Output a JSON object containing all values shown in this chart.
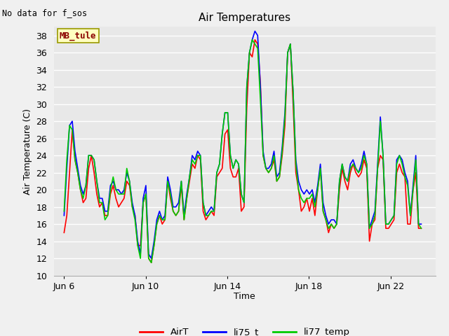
{
  "title": "Air Temperatures",
  "ylabel": "Air Temperature (C)",
  "xlabel": "Time",
  "no_data_label": "No data for f_sos",
  "station_label": "MB_tule",
  "ylim": [
    10,
    39
  ],
  "yticks": [
    10,
    12,
    14,
    16,
    18,
    20,
    22,
    24,
    26,
    28,
    30,
    32,
    34,
    36,
    38
  ],
  "xtick_positions": [
    6,
    10,
    14,
    18,
    22
  ],
  "xtick_labels": [
    "Jun 6",
    "Jun 10",
    "Jun 14",
    "Jun 18",
    "Jun 22"
  ],
  "legend_labels": [
    "AirT",
    "li75_t",
    "li77_temp"
  ],
  "legend_colors": [
    "#ff0000",
    "#0000ff",
    "#00cc00"
  ],
  "bg_color": "#e8e8e8",
  "fig_bg_color": "#f0f0f0",
  "grid_color": "#ffffff",
  "line_width": 1.2,
  "xlim": [
    5.5,
    24.2
  ],
  "AirT": [
    15.0,
    17.0,
    22.0,
    27.0,
    23.5,
    22.0,
    20.0,
    18.5,
    19.0,
    22.5,
    24.0,
    22.0,
    19.5,
    18.0,
    18.5,
    17.0,
    17.0,
    19.5,
    20.5,
    19.0,
    18.0,
    18.5,
    19.0,
    21.0,
    20.5,
    18.0,
    17.0,
    13.5,
    13.5,
    18.5,
    19.5,
    12.0,
    11.5,
    13.5,
    16.0,
    17.0,
    16.0,
    16.5,
    21.0,
    19.0,
    17.5,
    17.0,
    17.5,
    20.5,
    16.5,
    19.0,
    21.0,
    23.0,
    22.5,
    24.0,
    23.5,
    17.5,
    16.5,
    17.0,
    17.5,
    17.0,
    21.5,
    22.0,
    22.5,
    26.5,
    27.0,
    22.5,
    21.5,
    21.5,
    22.5,
    17.5,
    18.0,
    29.5,
    36.0,
    35.5,
    37.5,
    37.0,
    32.5,
    24.0,
    22.5,
    22.0,
    22.5,
    23.5,
    21.0,
    21.5,
    24.0,
    27.5,
    36.0,
    37.0,
    30.0,
    22.0,
    20.0,
    17.5,
    18.0,
    19.0,
    17.5,
    19.0,
    17.0,
    20.0,
    22.5,
    17.5,
    16.5,
    15.0,
    16.0,
    15.5,
    16.0,
    20.0,
    22.5,
    21.0,
    20.0,
    22.0,
    23.0,
    22.0,
    21.5,
    22.0,
    23.5,
    22.5,
    14.0,
    16.0,
    16.5,
    22.5,
    24.0,
    23.5,
    15.5,
    15.5,
    16.0,
    16.5,
    22.0,
    23.0,
    22.0,
    21.5,
    16.0,
    16.0,
    20.0,
    22.0,
    15.5,
    15.5
  ],
  "li75_t": [
    17.0,
    22.5,
    27.5,
    28.0,
    24.5,
    22.5,
    20.5,
    19.5,
    20.5,
    24.0,
    24.0,
    23.5,
    21.0,
    19.0,
    19.0,
    17.5,
    17.5,
    20.5,
    21.0,
    20.0,
    20.0,
    19.5,
    20.0,
    22.0,
    21.0,
    18.5,
    17.0,
    14.0,
    12.5,
    19.0,
    20.5,
    12.5,
    12.0,
    14.0,
    16.5,
    17.5,
    16.5,
    17.0,
    21.5,
    20.0,
    18.0,
    18.0,
    18.5,
    21.0,
    17.0,
    19.5,
    21.5,
    24.0,
    23.5,
    24.5,
    24.0,
    18.5,
    17.0,
    17.5,
    18.0,
    17.5,
    22.0,
    23.0,
    26.5,
    29.0,
    29.0,
    24.0,
    22.5,
    23.5,
    23.0,
    19.5,
    18.5,
    32.0,
    36.0,
    37.5,
    38.5,
    38.0,
    32.0,
    24.5,
    22.5,
    22.5,
    23.0,
    24.5,
    21.5,
    22.0,
    25.0,
    29.0,
    36.0,
    37.0,
    31.5,
    23.5,
    21.0,
    20.0,
    19.5,
    20.0,
    19.5,
    20.0,
    18.5,
    20.5,
    23.0,
    18.5,
    17.0,
    16.0,
    16.5,
    16.5,
    16.0,
    21.0,
    23.0,
    21.5,
    21.0,
    23.0,
    23.5,
    22.5,
    22.0,
    23.0,
    24.5,
    23.0,
    15.5,
    16.5,
    17.5,
    23.0,
    28.5,
    24.0,
    16.0,
    16.0,
    16.5,
    17.0,
    23.5,
    24.0,
    23.5,
    22.0,
    21.0,
    17.0,
    20.5,
    24.0,
    16.0,
    16.0
  ],
  "li77_temp": [
    17.5,
    23.5,
    27.5,
    27.0,
    23.5,
    22.0,
    20.0,
    19.0,
    20.5,
    24.0,
    24.0,
    23.5,
    21.0,
    18.5,
    18.5,
    16.5,
    17.0,
    20.0,
    21.5,
    20.0,
    19.5,
    19.5,
    19.5,
    22.5,
    21.0,
    18.0,
    16.5,
    13.5,
    12.0,
    18.5,
    19.5,
    12.0,
    11.5,
    13.5,
    16.0,
    17.0,
    16.5,
    16.5,
    21.0,
    19.5,
    17.5,
    17.0,
    17.5,
    21.0,
    16.5,
    19.0,
    21.5,
    23.5,
    23.0,
    24.0,
    24.0,
    18.5,
    17.0,
    17.0,
    17.5,
    17.5,
    22.0,
    23.0,
    26.5,
    29.0,
    29.0,
    24.0,
    22.5,
    23.5,
    23.0,
    19.5,
    18.5,
    32.0,
    36.0,
    37.5,
    37.0,
    36.5,
    30.5,
    24.0,
    22.5,
    22.0,
    22.5,
    24.0,
    21.0,
    21.5,
    24.5,
    28.5,
    36.0,
    37.0,
    31.5,
    23.0,
    20.0,
    19.0,
    18.5,
    19.0,
    19.0,
    19.5,
    18.0,
    20.0,
    22.5,
    17.5,
    16.5,
    15.5,
    16.0,
    15.5,
    16.0,
    21.0,
    23.0,
    21.5,
    21.0,
    22.5,
    23.0,
    22.5,
    22.0,
    22.5,
    24.0,
    23.0,
    15.5,
    16.0,
    17.0,
    22.5,
    28.0,
    24.0,
    16.0,
    16.0,
    16.5,
    17.0,
    23.0,
    24.0,
    23.0,
    21.5,
    20.5,
    17.0,
    20.0,
    23.5,
    16.0,
    15.5
  ]
}
